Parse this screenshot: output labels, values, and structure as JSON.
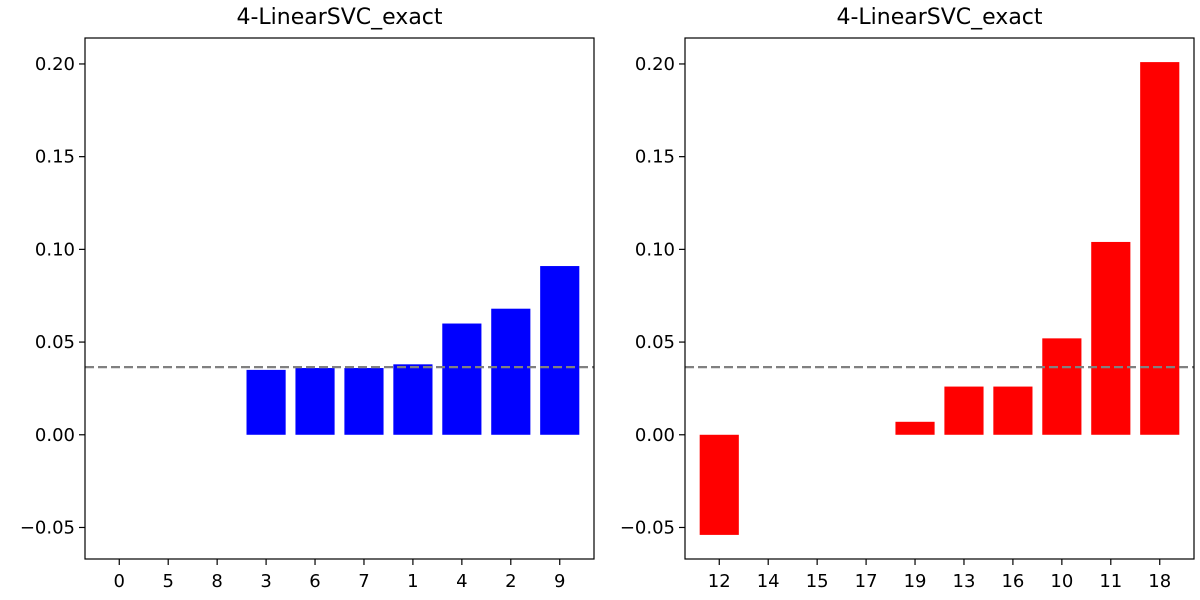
{
  "chart_data": [
    {
      "type": "bar",
      "title": "4-LinearSVC_exact",
      "xlabel": "",
      "ylabel": "",
      "categories": [
        "0",
        "5",
        "8",
        "3",
        "6",
        "7",
        "1",
        "4",
        "2",
        "9"
      ],
      "values": [
        0.0,
        0.0,
        0.0,
        0.035,
        0.036,
        0.036,
        0.038,
        0.06,
        0.068,
        0.091
      ],
      "color": "#0000ff",
      "reference_line": 0.0365,
      "reference_color": "#808080",
      "ylim": [
        -0.067,
        0.214
      ],
      "yticks": [
        "−0.05",
        "0.00",
        "0.05",
        "0.10",
        "0.15",
        "0.20"
      ],
      "ytick_values": [
        -0.05,
        0.0,
        0.05,
        0.1,
        0.15,
        0.2
      ],
      "grid": false
    },
    {
      "type": "bar",
      "title": "4-LinearSVC_exact",
      "xlabel": "",
      "ylabel": "",
      "categories": [
        "12",
        "14",
        "15",
        "17",
        "19",
        "13",
        "16",
        "10",
        "11",
        "18"
      ],
      "values": [
        -0.054,
        0.0,
        0.0,
        0.0,
        0.007,
        0.026,
        0.026,
        0.052,
        0.104,
        0.201
      ],
      "color": "#ff0000",
      "reference_line": 0.0365,
      "reference_color": "#808080",
      "ylim": [
        -0.067,
        0.214
      ],
      "yticks": [
        "−0.05",
        "0.00",
        "0.05",
        "0.10",
        "0.15",
        "0.20"
      ],
      "ytick_values": [
        -0.05,
        0.0,
        0.05,
        0.1,
        0.15,
        0.2
      ],
      "grid": false
    }
  ]
}
